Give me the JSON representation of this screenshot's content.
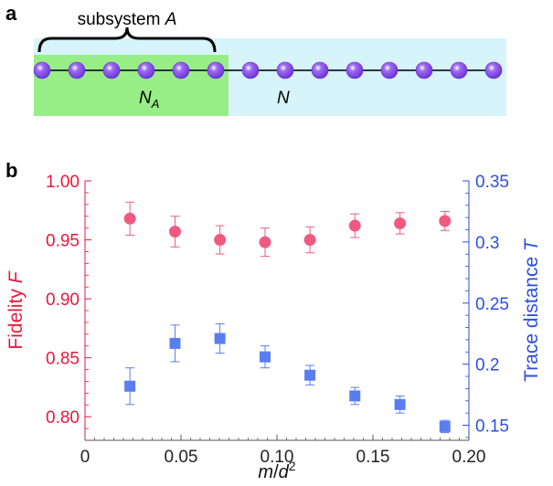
{
  "panel_a": {
    "label": "a",
    "subsystem_label": "subsystem",
    "subsystem_var": "A",
    "na_label": "N",
    "na_sub": "A",
    "n_label": "N",
    "total_sites": 14,
    "subsystem_sites": 6,
    "colors": {
      "bg_full": "#d6f4fa",
      "bg_sub": "#98ee86",
      "atom": "#9e6bf2",
      "atom_dark": "#6a2fd4"
    }
  },
  "panel_b": {
    "label": "b"
  },
  "chart_data": {
    "type": "scatter",
    "xlabel_var": "m",
    "xlabel_mid": "/",
    "xlabel_den": "d",
    "xlabel_exp": "2",
    "xlim": [
      0,
      0.2
    ],
    "xticks": [
      0,
      0.05,
      0.1,
      0.15,
      0.2
    ],
    "xtick_labels": [
      "0",
      "0.05",
      "0.10",
      "0.15",
      "0.20"
    ],
    "left_axis": {
      "label": "Fidelity",
      "label_var": "F",
      "ylim": [
        0.78,
        1.0
      ],
      "ticks": [
        0.8,
        0.85,
        0.9,
        0.95,
        1.0
      ],
      "tick_labels": [
        "0.80",
        "0.85",
        "0.90",
        "0.95",
        "1.00"
      ],
      "color": "#e8183c"
    },
    "right_axis": {
      "label": "Trace distance",
      "label_var": "T",
      "ylim": [
        0.1377,
        0.35
      ],
      "ticks": [
        0.15,
        0.2,
        0.25,
        0.3,
        0.35
      ],
      "tick_labels": [
        "0.15",
        "0.2",
        "0.25",
        "0.3",
        "0.35"
      ],
      "color": "#2b4ee6"
    },
    "series": [
      {
        "name": "Fidelity F",
        "axis": "left",
        "marker": "circle",
        "color": "#f05a80",
        "x": [
          0.0234,
          0.0469,
          0.0703,
          0.0938,
          0.1172,
          0.1406,
          0.1641,
          0.1875
        ],
        "y": [
          0.968,
          0.957,
          0.95,
          0.948,
          0.95,
          0.962,
          0.964,
          0.966
        ],
        "err": [
          0.014,
          0.013,
          0.012,
          0.012,
          0.011,
          0.01,
          0.009,
          0.008
        ]
      },
      {
        "name": "Trace distance T",
        "axis": "right",
        "marker": "square",
        "color": "#5a7ef0",
        "x": [
          0.0234,
          0.0469,
          0.0703,
          0.0938,
          0.1172,
          0.1406,
          0.1641,
          0.1875
        ],
        "y": [
          0.182,
          0.217,
          0.221,
          0.206,
          0.191,
          0.174,
          0.167,
          0.149
        ],
        "err": [
          0.015,
          0.015,
          0.012,
          0.009,
          0.008,
          0.007,
          0.007,
          0.005
        ]
      }
    ]
  }
}
